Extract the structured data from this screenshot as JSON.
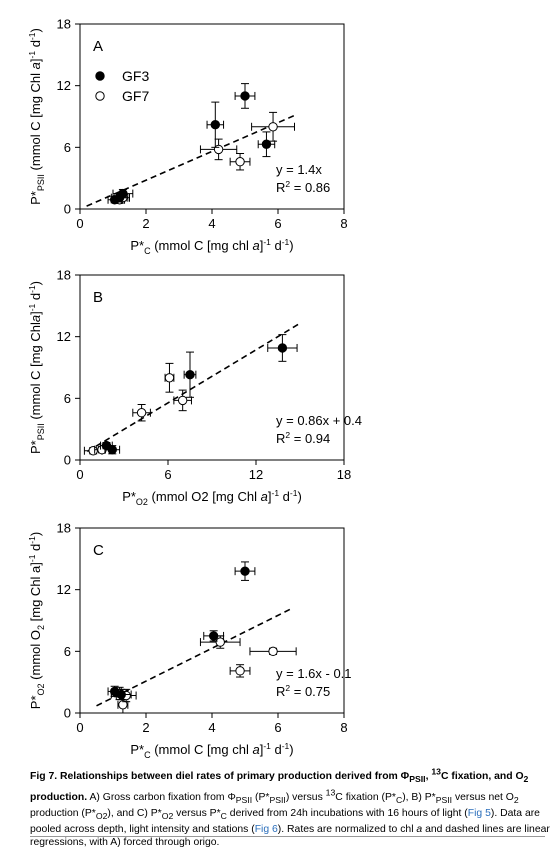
{
  "figure": {
    "caption": {
      "label": "Fig 7. Relationships between diel rates of primary production derived from Φ",
      "label_sub": "PSII",
      "label_mid": ", ",
      "label_sup": "13",
      "label_tail": "C fixation, and O",
      "label_sub2": "2",
      "label_end": " production.",
      "body_1": " A) Gross carbon fixation from Φ",
      "body_1_sub": "PSII",
      "body_2": " (P*",
      "body_2_sub": "PSII",
      "body_3": ") versus ",
      "body_3_sup": "13",
      "body_4": "C fixation (P*",
      "body_4_sub": "C",
      "body_5": "), B) P*",
      "body_5_sub": "PSII",
      "body_6": " versus net O",
      "body_6_sub": "2",
      "body_7": " production (P*",
      "body_7_sub": "O2",
      "body_8": "), and C) P*",
      "body_8_sub": "O2",
      "body_9": " versus P*",
      "body_9_sub": "C",
      "body_10": " derived from 24h incubations with 16 hours of light (",
      "link_1": "Fig 5",
      "body_11": "). Data are pooled across depth, light intensity and stations (",
      "link_2": "Fig 6",
      "body_12": "). Rates are normalized to chl ",
      "body_12_italic": "a",
      "body_13": " and dashed lines are linear regressions, with A) forced through origo."
    }
  },
  "chart_data": [
    {
      "type": "scatter",
      "panel": "A",
      "xlim": [
        0,
        8
      ],
      "ylim": [
        0,
        18
      ],
      "xticks": [
        0,
        2,
        4,
        6,
        8
      ],
      "yticks": [
        0,
        6,
        12,
        18
      ],
      "xlabel": {
        "p": "P*",
        "sub": "C",
        "rest": " (mmol C [mg chl ",
        "ital": "a",
        "rest2": "]",
        "sup": "-1",
        "rest3": " d",
        "sup2": "-1",
        "end": ")"
      },
      "ylabel": {
        "p": "P*",
        "sub": "PSII",
        "rest": " (mmol C [mg Chl ",
        "ital": "a",
        "rest2": "]",
        "sup": "-1",
        "rest3": " d",
        "sup2": "-1",
        "end": ")"
      },
      "legend": [
        {
          "name": "GF3",
          "marker": "filled"
        },
        {
          "name": "GF7",
          "marker": "open"
        }
      ],
      "equation": "y = 1.4x",
      "r2_label": "R",
      "r2_sup": "2",
      "r2_value": " = 0.86",
      "regression": {
        "slope": 1.4,
        "intercept": 0,
        "x_range": [
          0.2,
          6.5
        ]
      },
      "series": [
        {
          "name": "GF3",
          "marker": "filled",
          "points": [
            {
              "x": 1.05,
              "y": 0.9,
              "xerr": 0.2,
              "yerr": 0.3
            },
            {
              "x": 1.2,
              "y": 1.1,
              "xerr": 0.25,
              "yerr": 0.4
            },
            {
              "x": 1.3,
              "y": 1.5,
              "xerr": 0.3,
              "yerr": 0.4
            },
            {
              "x": 4.1,
              "y": 8.2,
              "xerr": 0.25,
              "yerr": 2.2
            },
            {
              "x": 5.0,
              "y": 11.0,
              "xerr": 0.3,
              "yerr": 1.2
            },
            {
              "x": 5.65,
              "y": 6.3,
              "xerr": 0.25,
              "yerr": 1.2
            }
          ]
        },
        {
          "name": "GF7",
          "marker": "open",
          "points": [
            {
              "x": 1.2,
              "y": 0.9,
              "xerr": 0.15,
              "yerr": 0.35
            },
            {
              "x": 1.3,
              "y": 1.1,
              "xerr": 0.2,
              "yerr": 0.3
            },
            {
              "x": 4.2,
              "y": 5.8,
              "xerr": 0.55,
              "yerr": 1.0
            },
            {
              "x": 4.85,
              "y": 4.6,
              "xerr": 0.3,
              "yerr": 0.8
            },
            {
              "x": 5.85,
              "y": 8.0,
              "xerr": 0.65,
              "yerr": 1.4
            }
          ]
        }
      ]
    },
    {
      "type": "scatter",
      "panel": "B",
      "xlim": [
        0,
        18
      ],
      "ylim": [
        0,
        18
      ],
      "xticks": [
        0,
        6,
        12,
        18
      ],
      "yticks": [
        0,
        6,
        12,
        18
      ],
      "xlabel": {
        "p": "P*",
        "sub": "O2",
        "rest": " (mmol O2 [mg Chl ",
        "ital": "a",
        "rest2": "]",
        "sup": "-1",
        "rest3": " d",
        "sup2": "-1",
        "end": ")"
      },
      "ylabel": {
        "p": "P*",
        "sub": "PSII",
        "rest": " (mmol C [mg Chl",
        "ital": "a",
        "rest2": "]",
        "sup": "-1",
        "rest3": " d",
        "sup2": "-1",
        "end": ")"
      },
      "legend": [],
      "equation": "y = 0.86x + 0.4",
      "r2_label": "R",
      "r2_sup": "2",
      "r2_value": " = 0.94",
      "regression": {
        "slope": 0.86,
        "intercept": 0.4,
        "x_range": [
          0.5,
          15.0
        ]
      },
      "series": [
        {
          "name": "GF3",
          "marker": "filled",
          "points": [
            {
              "x": 1.8,
              "y": 1.4,
              "xerr": 0.4,
              "yerr": 0.3
            },
            {
              "x": 2.2,
              "y": 1.0,
              "xerr": 0.5,
              "yerr": 0.4
            },
            {
              "x": 7.5,
              "y": 8.3,
              "xerr": 0.4,
              "yerr": 2.2
            },
            {
              "x": 13.8,
              "y": 10.9,
              "xerr": 1.0,
              "yerr": 1.3
            }
          ]
        },
        {
          "name": "GF7",
          "marker": "open",
          "points": [
            {
              "x": 0.9,
              "y": 0.9,
              "xerr": 0.6,
              "yerr": 0.3
            },
            {
              "x": 1.5,
              "y": 1.0,
              "xerr": 0.5,
              "yerr": 0.3
            },
            {
              "x": 4.2,
              "y": 4.6,
              "xerr": 0.6,
              "yerr": 0.8
            },
            {
              "x": 6.1,
              "y": 8.0,
              "xerr": 0.3,
              "yerr": 1.4
            },
            {
              "x": 7.0,
              "y": 5.8,
              "xerr": 0.6,
              "yerr": 1.0
            }
          ]
        }
      ]
    },
    {
      "type": "scatter",
      "panel": "C",
      "xlim": [
        0,
        8
      ],
      "ylim": [
        0,
        18
      ],
      "xticks": [
        0,
        2,
        4,
        6,
        8
      ],
      "yticks": [
        0,
        6,
        12,
        18
      ],
      "xlabel": {
        "p": "P*",
        "sub": "C",
        "rest": " (mmol C [mg chl ",
        "ital": "a",
        "rest2": "]",
        "sup": "-1",
        "rest3": " d",
        "sup2": "-1",
        "end": ")"
      },
      "ylabel": {
        "p": "P*",
        "sub": "O2",
        "rest": " (mmol O",
        "ital": "2",
        "rest2": " [mg Chl a]",
        "sup": "-1",
        "rest3": " d",
        "sup2": "-1",
        "end": ")"
      },
      "legend": [],
      "equation": "y = 1.6x - 0.1",
      "r2_label": "R",
      "r2_sup": "2",
      "r2_value": " = 0.75",
      "regression": {
        "slope": 1.6,
        "intercept": -0.1,
        "x_range": [
          0.5,
          6.4
        ]
      },
      "series": [
        {
          "name": "GF3",
          "marker": "filled",
          "points": [
            {
              "x": 1.05,
              "y": 2.1,
              "xerr": 0.2,
              "yerr": 0.5
            },
            {
              "x": 1.25,
              "y": 1.8,
              "xerr": 0.3,
              "yerr": 0.5
            },
            {
              "x": 4.05,
              "y": 7.5,
              "xerr": 0.3,
              "yerr": 0.5
            },
            {
              "x": 5.0,
              "y": 13.8,
              "xerr": 0.3,
              "yerr": 0.9
            }
          ]
        },
        {
          "name": "GF7",
          "marker": "open",
          "points": [
            {
              "x": 1.2,
              "y": 1.9,
              "xerr": 0.25,
              "yerr": 0.6
            },
            {
              "x": 1.3,
              "y": 0.8,
              "xerr": 0.15,
              "yerr": 0.8
            },
            {
              "x": 1.4,
              "y": 1.7,
              "xerr": 0.3,
              "yerr": 0.6
            },
            {
              "x": 4.25,
              "y": 6.9,
              "xerr": 0.6,
              "yerr": 0.6
            },
            {
              "x": 4.85,
              "y": 4.1,
              "xerr": 0.3,
              "yerr": 0.6
            },
            {
              "x": 5.85,
              "y": 6.0,
              "xerr": 0.7,
              "yerr": 0.3
            }
          ]
        }
      ]
    }
  ]
}
